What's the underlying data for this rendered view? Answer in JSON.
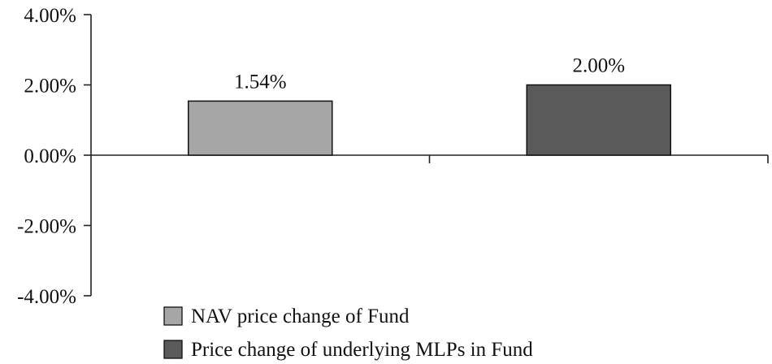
{
  "chart_data": {
    "type": "bar",
    "categories": [
      "NAV price change of Fund",
      "Price change of underlying MLPs in Fund"
    ],
    "values": [
      1.54,
      2.0
    ],
    "data_labels": [
      "1.54%",
      "2.00%"
    ],
    "colors": [
      "#a6a6a6",
      "#5a5a5a"
    ],
    "ylim": [
      -4,
      4
    ],
    "y_ticks": [
      4,
      2,
      0,
      -2,
      -4
    ],
    "y_tick_labels": [
      "4.00%",
      "2.00%",
      "0.00%",
      "-2.00%",
      "-4.00%"
    ],
    "grid": false,
    "legend": {
      "placement": "bottom",
      "entries": [
        "NAV price change of Fund",
        "Price change of underlying MLPs in Fund"
      ]
    }
  }
}
